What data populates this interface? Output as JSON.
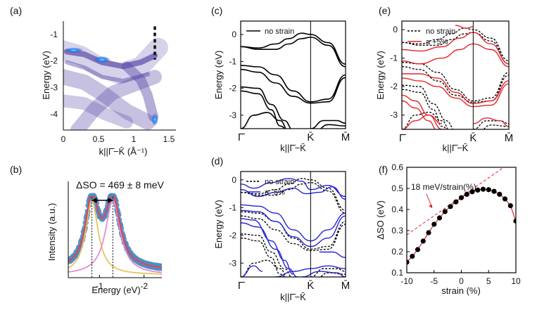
{
  "colors": {
    "strain_pos": "#e3232c",
    "strain_neg": "#2424d6",
    "base": "#000000",
    "blue_dots": "#4a8fc7",
    "fit_red": "#e8434a",
    "fit_pink": "#e58ad1",
    "fit_yellow": "#e6c65a",
    "arpes_blue": "#1f8ff0",
    "arpes_purple": "#5b4aa8"
  },
  "chart_data": [
    {
      "panel": "(a)",
      "type": "heatmap",
      "xlabel": "k||Γ̄−K̄ (Å⁻¹)",
      "ylabel": "Energy (eV)",
      "xlim": [
        0,
        1.6
      ],
      "ylim": [
        -4.6,
        -0.5
      ],
      "xticks": [
        "0",
        "0.5",
        "1",
        "1.5"
      ],
      "yticks": [
        "-1",
        "-2",
        "-3",
        "-4"
      ],
      "colormap": "white-purple-blue",
      "marker": {
        "kind": "dashed vertical line",
        "x": 1.3,
        "y_range": [
          -0.7,
          -1.95
        ]
      }
    },
    {
      "panel": "(b)",
      "type": "line",
      "annotation": "ΔSO = 469 ± 8 meV",
      "xlabel": "Energy (eV)",
      "ylabel": "Intensity (a.u.)",
      "xlim": [
        -0.3,
        -2.4
      ],
      "xticks": [
        "-1",
        "-2"
      ],
      "peak_positions_eV": [
        -0.83,
        -1.3
      ],
      "series": [
        {
          "name": "data",
          "style": "blue dots"
        },
        {
          "name": "total fit",
          "style": "red line"
        },
        {
          "name": "peak 1",
          "style": "yellow line"
        },
        {
          "name": "peak 2",
          "style": "pink line"
        }
      ]
    },
    {
      "panel": "(c)",
      "type": "line",
      "legend": [
        "no strain"
      ],
      "xlabel": "k||Γ̄−K̄",
      "ylabel": "Energy (eV)",
      "ylim": [
        -3.5,
        0.5
      ],
      "yticks": [
        "0",
        "-1",
        "-2",
        "-3"
      ],
      "xticks": [
        "Γ̄",
        "K̄",
        "M̄"
      ],
      "k_points": [
        0,
        0.8,
        1.2
      ]
    },
    {
      "panel": "(d)",
      "type": "line",
      "legend": [
        "no strain",
        "a -5%"
      ],
      "xlabel": "k||Γ̄−K̄",
      "ylabel": "Energy (eV)",
      "ylim": [
        -3.5,
        0.3
      ],
      "yticks": [
        "0",
        "-1",
        "-2",
        "-3"
      ],
      "xticks": [
        "Γ̄",
        "K̄",
        "M̄"
      ],
      "k_points": [
        0,
        0.8,
        1.2
      ]
    },
    {
      "panel": "(e)",
      "type": "line",
      "legend": [
        "no strain",
        "a +5%"
      ],
      "xlabel": "k||Γ̄−K̄",
      "ylabel": "Energy (eV)",
      "ylim": [
        -3.5,
        0.3
      ],
      "yticks": [
        "0",
        "-1",
        "-2",
        "-3"
      ],
      "xticks": [
        "Γ̄",
        "K̄",
        "M̄"
      ],
      "k_points": [
        0,
        0.8,
        1.2
      ]
    },
    {
      "panel": "(f)",
      "type": "scatter",
      "xlabel": "strain (%)",
      "ylabel": "ΔSO (eV)",
      "xlim": [
        -10,
        10
      ],
      "ylim": [
        0.1,
        0.6
      ],
      "xticks": [
        "-10",
        "-5",
        "0",
        "5",
        "10"
      ],
      "yticks": [
        "0.1",
        "0.2",
        "0.3",
        "0.4",
        "0.5",
        "0.6"
      ],
      "annotation": "18 meV/strain(%)",
      "x": [
        -10,
        -9,
        -8,
        -7,
        -6,
        -5,
        -4,
        -3,
        -2,
        -1,
        0,
        1,
        2,
        3,
        4,
        5,
        6,
        7,
        8,
        9,
        10
      ],
      "y": [
        0.15,
        0.178,
        0.21,
        0.25,
        0.29,
        0.33,
        0.36,
        0.39,
        0.414,
        0.436,
        0.456,
        0.472,
        0.484,
        0.492,
        0.496,
        0.494,
        0.486,
        0.472,
        0.45,
        0.418,
        0.345
      ],
      "tangent": {
        "slope": 0.018,
        "intercept": 0.46
      }
    }
  ]
}
